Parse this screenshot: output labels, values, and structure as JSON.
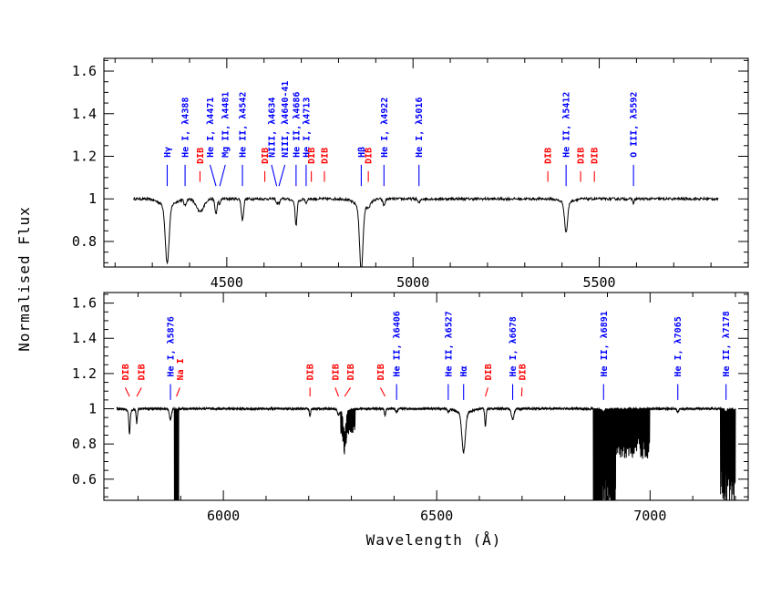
{
  "chart_data": {
    "type": "line",
    "ylabel": "Normalised Flux",
    "xlabel": "Wavelength (Å)",
    "colors": {
      "blue": "#0000ff",
      "red": "#ff0000",
      "line": "#000000"
    },
    "panels": [
      {
        "name": "top",
        "xlim": [
          4170,
          5900
        ],
        "ylim": [
          0.68,
          1.66
        ],
        "xticks_major": [
          4500,
          5000,
          5500
        ],
        "xtick_labels": [
          "4500",
          "5000",
          "5500"
        ],
        "yticks_major": [
          0.8,
          1.0,
          1.2,
          1.4,
          1.6
        ],
        "ytick_labels": [
          "0.8",
          "1",
          "1.2",
          "1.4",
          "1.6"
        ],
        "absorption": [
          {
            "w": 4340,
            "d": 0.27,
            "s": 5
          },
          {
            "w": 4388,
            "d": 0.03,
            "s": 3
          },
          {
            "w": 4428,
            "d": 0.06,
            "s": 10
          },
          {
            "w": 4471,
            "d": 0.07,
            "s": 3
          },
          {
            "w": 4481,
            "d": 0.03,
            "s": 2
          },
          {
            "w": 4542,
            "d": 0.1,
            "s": 3
          },
          {
            "w": 4634,
            "d": 0.02,
            "s": 2
          },
          {
            "w": 4640,
            "d": 0.02,
            "s": 3
          },
          {
            "w": 4686,
            "d": 0.11,
            "s": 2.5
          },
          {
            "w": 4713,
            "d": 0.02,
            "s": 2
          },
          {
            "w": 4861,
            "d": 0.3,
            "s": 4.5
          },
          {
            "w": 4880,
            "d": 0.02,
            "s": 6
          },
          {
            "w": 4922,
            "d": 0.03,
            "s": 3
          },
          {
            "w": 5016,
            "d": 0.02,
            "s": 3
          },
          {
            "w": 5411,
            "d": 0.14,
            "s": 4
          },
          {
            "w": 5592,
            "d": 0.02,
            "s": 2
          }
        ],
        "annotations": [
          {
            "w": 4340,
            "label": "Hγ",
            "color": "blue",
            "lx": 4340,
            "l1": 1.16,
            "l2": 1.06
          },
          {
            "w": 4388,
            "label": "He I, λ4388",
            "color": "blue",
            "lx": 4388,
            "l1": 1.16,
            "l2": 1.06
          },
          {
            "w": 4428,
            "label": "DIB",
            "color": "red",
            "lx": 4428,
            "l1": 1.13,
            "l2": 1.08
          },
          {
            "w": 4471,
            "label": "He I, λ4471",
            "color": "blue",
            "lx": 4455,
            "l1": 1.16,
            "l2": 1.06
          },
          {
            "w": 4481,
            "label": "Mg II, λ4481",
            "color": "blue",
            "lx": 4496,
            "l1": 1.16,
            "l2": 1.06
          },
          {
            "w": 4542,
            "label": "He II, λ4542",
            "color": "blue",
            "lx": 4542,
            "l1": 1.16,
            "l2": 1.06
          },
          {
            "w": 4602,
            "label": "DIB",
            "color": "red",
            "lx": 4602,
            "l1": 1.13,
            "l2": 1.08
          },
          {
            "w": 4634,
            "label": "NIII, λ4634",
            "color": "blue",
            "lx": 4620,
            "l1": 1.16,
            "l2": 1.06
          },
          {
            "w": 4640,
            "label": "NIII, λ4640-41",
            "color": "blue",
            "lx": 4656,
            "l1": 1.16,
            "l2": 1.06
          },
          {
            "w": 4686,
            "label": "He II, λ4686",
            "color": "blue",
            "lx": 4686,
            "l1": 1.16,
            "l2": 1.06
          },
          {
            "w": 4713,
            "label": "He I, λ4713",
            "color": "blue",
            "lx": 4713,
            "l1": 1.16,
            "l2": 1.06
          },
          {
            "w": 4727,
            "label": "DIB",
            "color": "red",
            "lx": 4727,
            "l1": 1.13,
            "l2": 1.08
          },
          {
            "w": 4762,
            "label": "DIB",
            "color": "red",
            "lx": 4762,
            "l1": 1.13,
            "l2": 1.08
          },
          {
            "w": 4861,
            "label": "Hβ",
            "color": "blue",
            "lx": 4861,
            "l1": 1.16,
            "l2": 1.06
          },
          {
            "w": 4880,
            "label": "DIB",
            "color": "red",
            "lx": 4880,
            "l1": 1.13,
            "l2": 1.08
          },
          {
            "w": 4922,
            "label": "He I, λ4922",
            "color": "blue",
            "lx": 4922,
            "l1": 1.16,
            "l2": 1.06
          },
          {
            "w": 5016,
            "label": "He I, λ5016",
            "color": "blue",
            "lx": 5016,
            "l1": 1.16,
            "l2": 1.06
          },
          {
            "w": 5362,
            "label": "DIB",
            "color": "red",
            "lx": 5362,
            "l1": 1.13,
            "l2": 1.08
          },
          {
            "w": 5411,
            "label": "He II, λ5412",
            "color": "blue",
            "lx": 5411,
            "l1": 1.16,
            "l2": 1.06
          },
          {
            "w": 5450,
            "label": "DIB",
            "color": "red",
            "lx": 5450,
            "l1": 1.13,
            "l2": 1.08
          },
          {
            "w": 5487,
            "label": "DIB",
            "color": "red",
            "lx": 5487,
            "l1": 1.13,
            "l2": 1.08
          },
          {
            "w": 5592,
            "label": "O III, λ5592",
            "color": "blue",
            "lx": 5592,
            "l1": 1.16,
            "l2": 1.06
          }
        ]
      },
      {
        "name": "bottom",
        "xlim": [
          5720,
          7230
        ],
        "ylim": [
          0.48,
          1.66
        ],
        "xticks_major": [
          6000,
          6500,
          7000
        ],
        "xtick_labels": [
          "6000",
          "6500",
          "7000"
        ],
        "yticks_major": [
          0.6,
          0.8,
          1.0,
          1.2,
          1.4,
          1.6
        ],
        "ytick_labels": [
          "0.6",
          "0.8",
          "1",
          "1.2",
          "1.4",
          "1.6"
        ],
        "absorption": [
          {
            "w": 5780,
            "d": 0.13,
            "s": 1.5
          },
          {
            "w": 5797,
            "d": 0.08,
            "s": 1.5
          },
          {
            "w": 5876,
            "d": 0.06,
            "s": 2.5
          },
          {
            "w": 6203,
            "d": 0.04,
            "s": 1.5
          },
          {
            "w": 6270,
            "d": 0.03,
            "s": 2
          },
          {
            "w": 6284,
            "d": 0.12,
            "s": 3
          },
          {
            "w": 6379,
            "d": 0.04,
            "s": 1.5
          },
          {
            "w": 6406,
            "d": 0.02,
            "s": 2
          },
          {
            "w": 6527,
            "d": 0.02,
            "s": 2
          },
          {
            "w": 6563,
            "d": 0.22,
            "s": 4
          },
          {
            "w": 6614,
            "d": 0.1,
            "s": 1.5
          },
          {
            "w": 6678,
            "d": 0.06,
            "s": 3
          },
          {
            "w": 6891,
            "d": 0.02,
            "s": 2
          },
          {
            "w": 7065,
            "d": 0.02,
            "s": 2
          },
          {
            "w": 7178,
            "d": 0.02,
            "s": 2
          }
        ],
        "telluric": [
          {
            "from": 5885,
            "to": 5895,
            "depth": 0.95,
            "period": 1.2
          },
          {
            "from": 6275,
            "to": 6310,
            "depth": 0.14,
            "period": 2.5
          },
          {
            "from": 6867,
            "to": 6885,
            "depth": 0.92,
            "period": 0.9
          },
          {
            "from": 6885,
            "to": 6920,
            "depth": 0.65,
            "period": 1.0
          },
          {
            "from": 6920,
            "to": 7000,
            "depth": 0.28,
            "period": 2.0
          },
          {
            "from": 7165,
            "to": 7200,
            "depth": 0.55,
            "period": 1.3
          }
        ],
        "annotations": [
          {
            "w": 5780,
            "label": "DIB",
            "color": "red",
            "lx": 5770,
            "l1": 1.12,
            "l2": 1.07
          },
          {
            "w": 5797,
            "label": "DIB",
            "color": "red",
            "lx": 5808,
            "l1": 1.12,
            "l2": 1.07
          },
          {
            "w": 5876,
            "label": "He I, λ5876",
            "color": "blue",
            "lx": 5876,
            "l1": 1.14,
            "l2": 1.05
          },
          {
            "w": 5890,
            "label": "Na I",
            "color": "red",
            "lx": 5898,
            "l1": 1.12,
            "l2": 1.07
          },
          {
            "w": 6203,
            "label": "DIB",
            "color": "red",
            "lx": 6203,
            "l1": 1.12,
            "l2": 1.07
          },
          {
            "w": 6270,
            "label": "DIB",
            "color": "red",
            "lx": 6262,
            "l1": 1.12,
            "l2": 1.07
          },
          {
            "w": 6284,
            "label": "DIB",
            "color": "red",
            "lx": 6298,
            "l1": 1.12,
            "l2": 1.07
          },
          {
            "w": 6379,
            "label": "DIB",
            "color": "red",
            "lx": 6368,
            "l1": 1.12,
            "l2": 1.07
          },
          {
            "w": 6406,
            "label": "He II, λ6406",
            "color": "blue",
            "lx": 6406,
            "l1": 1.14,
            "l2": 1.05
          },
          {
            "w": 6527,
            "label": "He II, λ6527",
            "color": "blue",
            "lx": 6527,
            "l1": 1.14,
            "l2": 1.05
          },
          {
            "w": 6563,
            "label": "Hα",
            "color": "blue",
            "lx": 6563,
            "l1": 1.14,
            "l2": 1.05
          },
          {
            "w": 6614,
            "label": "DIB",
            "color": "red",
            "lx": 6620,
            "l1": 1.12,
            "l2": 1.07
          },
          {
            "w": 6678,
            "label": "He I, λ6678",
            "color": "blue",
            "lx": 6678,
            "l1": 1.14,
            "l2": 1.05
          },
          {
            "w": 6699,
            "label": "DIB",
            "color": "red",
            "lx": 6700,
            "l1": 1.12,
            "l2": 1.07
          },
          {
            "w": 6891,
            "label": "He II, λ6891",
            "color": "blue",
            "lx": 6891,
            "l1": 1.14,
            "l2": 1.05
          },
          {
            "w": 7065,
            "label": "He I, λ7065",
            "color": "blue",
            "lx": 7065,
            "l1": 1.14,
            "l2": 1.05
          },
          {
            "w": 7178,
            "label": "He II, λ7178",
            "color": "blue",
            "lx": 7178,
            "l1": 1.14,
            "l2": 1.05
          }
        ]
      }
    ]
  }
}
